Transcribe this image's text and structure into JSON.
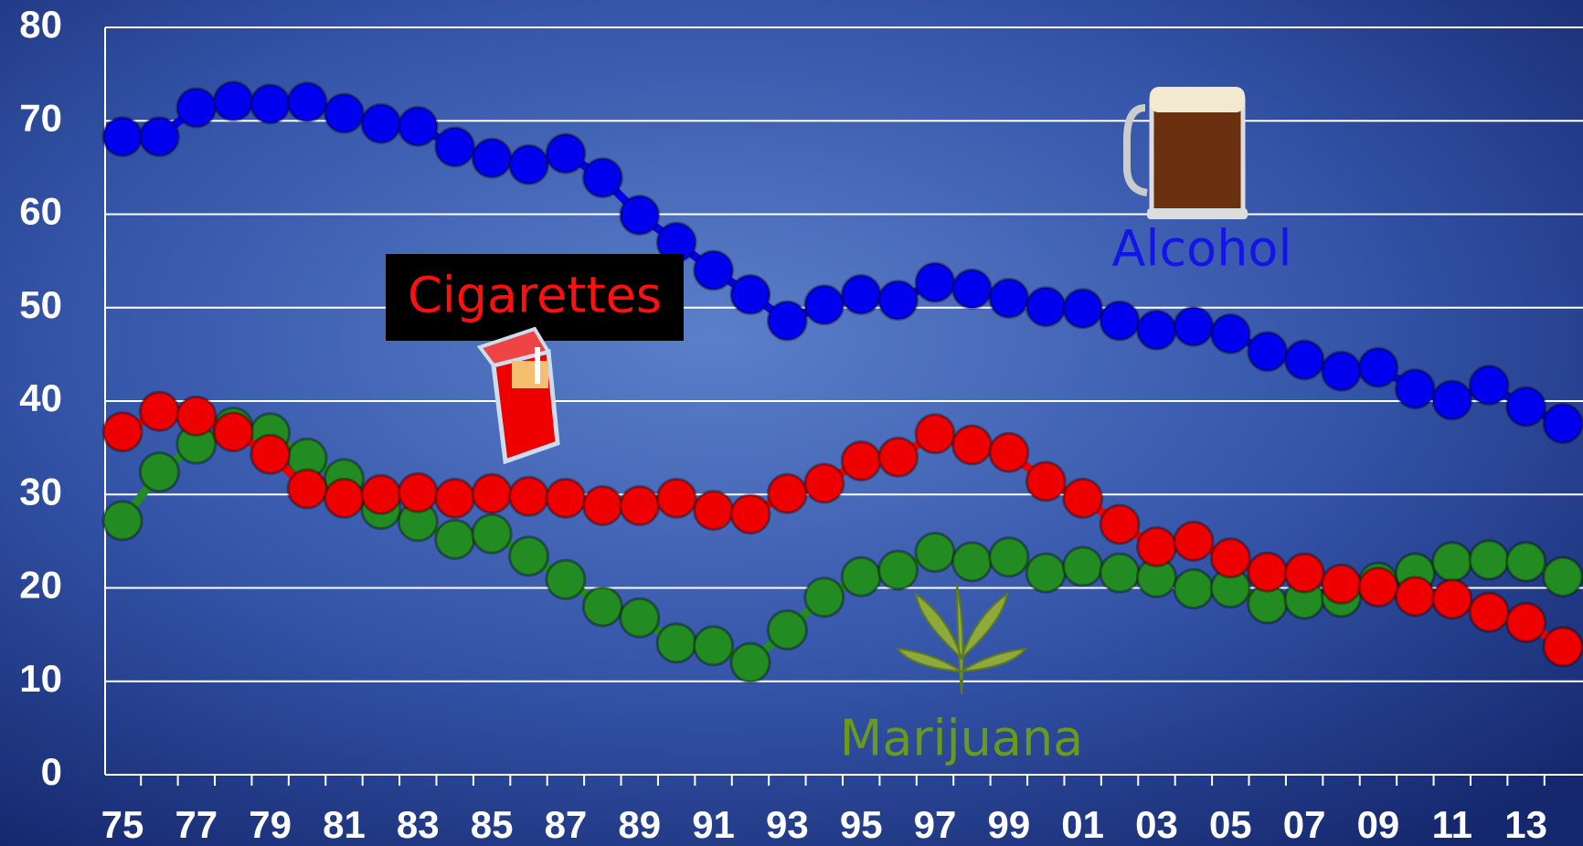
{
  "chart_data": {
    "type": "line",
    "categories": [
      "75",
      null,
      "77",
      null,
      "79",
      null,
      "81",
      null,
      "83",
      null,
      "85",
      null,
      "87",
      null,
      "89",
      null,
      "91",
      null,
      "93",
      null,
      "95",
      null,
      "97",
      null,
      "99",
      null,
      "01",
      null,
      "03",
      null,
      "05",
      null,
      "07",
      null,
      "09",
      null,
      "11",
      null,
      "13",
      null
    ],
    "ylim": [
      0,
      80
    ],
    "yticks": [
      0,
      10,
      20,
      30,
      40,
      50,
      60,
      70,
      80
    ],
    "grid": true,
    "series": [
      {
        "name": "Alcohol",
        "color": "#0000ee",
        "values": [
          68.3,
          68.3,
          71.4,
          72.1,
          71.8,
          72.0,
          70.8,
          69.7,
          69.4,
          67.2,
          66.0,
          65.3,
          66.5,
          63.9,
          59.9,
          57.0,
          54.0,
          51.4,
          48.6,
          50.3,
          51.4,
          50.8,
          52.7,
          52.0,
          51.0,
          50.1,
          49.9,
          48.6,
          47.6,
          48.0,
          47.2,
          45.3,
          44.4,
          43.2,
          43.6,
          41.3,
          40.1,
          41.7,
          39.4,
          37.6
        ]
      },
      {
        "name": "Cigarettes",
        "color": "#ee0000",
        "values": [
          36.7,
          38.9,
          38.4,
          36.7,
          34.3,
          30.6,
          29.6,
          30.0,
          30.2,
          29.6,
          30.1,
          29.8,
          29.6,
          28.8,
          28.8,
          29.6,
          28.3,
          27.9,
          30.1,
          31.2,
          33.6,
          34.0,
          36.5,
          35.3,
          34.5,
          31.4,
          29.6,
          26.8,
          24.4,
          25.0,
          23.2,
          21.7,
          21.6,
          20.4,
          20.1,
          19.1,
          18.8,
          17.4,
          16.3,
          13.7
        ]
      },
      {
        "name": "Marijuana",
        "color": "#228b22",
        "values": [
          27.2,
          32.4,
          35.4,
          37.2,
          36.6,
          33.9,
          31.7,
          28.4,
          27.1,
          25.2,
          25.8,
          23.4,
          20.9,
          18.0,
          16.8,
          14.1,
          13.8,
          12.0,
          15.5,
          19.0,
          21.2,
          21.9,
          23.8,
          22.8,
          23.3,
          21.6,
          22.3,
          21.6,
          21.1,
          19.9,
          20.0,
          18.3,
          18.8,
          19.0,
          20.6,
          21.6,
          22.8,
          23.0,
          22.8,
          21.2
        ]
      }
    ]
  }
}
